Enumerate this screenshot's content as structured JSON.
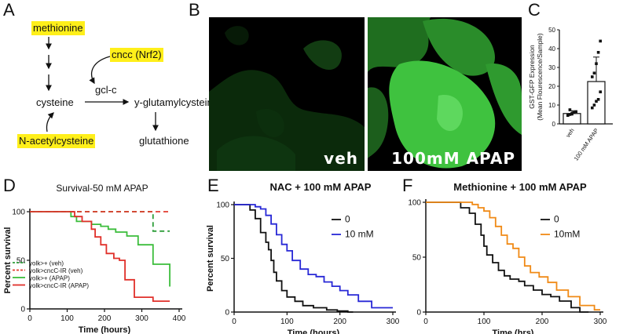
{
  "panels": {
    "A": {
      "label": "A",
      "nodes": {
        "methionine": "methionine",
        "cncc": "cncc (Nrf2)",
        "cysteine": "cysteine",
        "gclc": "gcl-c",
        "glutamylcysteine": "y-glutamylcysteine",
        "nac": "N-acetylcysteine",
        "glutathione": "glutathione"
      }
    },
    "B": {
      "label": "B",
      "left_caption": "veh",
      "right_caption": "100mM APAP"
    },
    "C": {
      "label": "C"
    },
    "D": {
      "label": "D"
    },
    "E": {
      "label": "E"
    },
    "F": {
      "label": "F"
    }
  },
  "chart_data": [
    {
      "id": "C",
      "type": "bar",
      "ylabel": "GST-GFP Expression\n(Mean Flourescence/Sample)",
      "ylim": [
        0,
        50
      ],
      "yticks": [
        0,
        10,
        20,
        30,
        40,
        50
      ],
      "categories": [
        "veh",
        "100 mM APAP"
      ],
      "values": [
        5.5,
        22.5
      ],
      "errors": [
        1.5,
        13
      ],
      "points": [
        [
          4.5,
          5.0,
          5.5,
          6.0,
          6.5,
          4.8,
          7.5,
          5.2
        ],
        [
          8.5,
          10,
          12,
          13,
          17,
          25,
          27,
          32,
          38,
          44
        ]
      ]
    },
    {
      "id": "D",
      "type": "line",
      "title": "Survival-50 mM APAP",
      "xlabel": "Time (hours)",
      "ylabel": "Percent survival",
      "xlim": [
        0,
        400
      ],
      "ylim": [
        0,
        100
      ],
      "xticks": [
        0,
        100,
        200,
        300,
        400
      ],
      "yticks": [
        0,
        50,
        100
      ],
      "legend_position": "bottom-left",
      "series": [
        {
          "name": "yolk>+ (veh)",
          "color": "#2e9e3a",
          "dash": "6,4",
          "x": [
            0,
            330,
            330,
            375
          ],
          "y": [
            100,
            100,
            80,
            80
          ]
        },
        {
          "name": "yolk>cncC-IR (veh)",
          "color": "#e23b2e",
          "dash": "6,4",
          "x": [
            0,
            375
          ],
          "y": [
            100,
            100
          ]
        },
        {
          "name": "yolk>+ (APAP)",
          "color": "#3bbd3b",
          "dash": "",
          "x": [
            0,
            110,
            110,
            125,
            125,
            165,
            165,
            190,
            190,
            210,
            210,
            230,
            230,
            260,
            260,
            290,
            290,
            330,
            330,
            375,
            375
          ],
          "y": [
            100,
            100,
            95,
            95,
            90,
            90,
            87,
            87,
            85,
            85,
            82,
            82,
            79,
            79,
            75,
            75,
            66,
            66,
            46,
            46,
            23
          ]
        },
        {
          "name": "yolk>cncC-IR (APAP)",
          "color": "#e0302a",
          "dash": "",
          "x": [
            0,
            120,
            120,
            140,
            140,
            165,
            165,
            175,
            175,
            190,
            190,
            205,
            205,
            225,
            225,
            240,
            240,
            255,
            255,
            280,
            280,
            330,
            330,
            375
          ],
          "y": [
            100,
            100,
            95,
            95,
            90,
            90,
            82,
            82,
            74,
            74,
            66,
            66,
            57,
            57,
            52,
            52,
            50,
            50,
            30,
            30,
            12,
            12,
            8,
            8
          ]
        }
      ]
    },
    {
      "id": "E",
      "type": "line",
      "title": "NAC + 100 mM APAP",
      "xlabel": "Time (hours)",
      "ylabel": "Percent survival",
      "xlim": [
        0,
        300
      ],
      "ylim": [
        0,
        100
      ],
      "xticks": [
        0,
        100,
        200,
        300
      ],
      "yticks": [
        0,
        50,
        100
      ],
      "legend_position": "top-right",
      "series": [
        {
          "name": "0",
          "color": "#111111",
          "dash": "",
          "x": [
            0,
            30,
            30,
            40,
            40,
            50,
            50,
            60,
            60,
            65,
            65,
            70,
            70,
            75,
            75,
            80,
            80,
            90,
            90,
            100,
            100,
            115,
            115,
            130,
            130,
            150,
            150,
            175,
            175,
            195,
            195,
            215,
            215,
            225
          ],
          "y": [
            100,
            100,
            95,
            95,
            87,
            87,
            74,
            74,
            65,
            65,
            58,
            58,
            48,
            48,
            37,
            37,
            29,
            29,
            20,
            20,
            14,
            14,
            10,
            10,
            6,
            6,
            4,
            4,
            2,
            2,
            1,
            1,
            0,
            0
          ]
        },
        {
          "name": "10 mM",
          "color": "#2828d6",
          "dash": "",
          "x": [
            0,
            40,
            40,
            50,
            50,
            60,
            60,
            70,
            70,
            80,
            80,
            90,
            90,
            100,
            100,
            110,
            110,
            125,
            125,
            140,
            140,
            155,
            155,
            170,
            170,
            185,
            185,
            200,
            200,
            215,
            215,
            235,
            235,
            260,
            260,
            300
          ],
          "y": [
            100,
            100,
            98,
            98,
            96,
            96,
            90,
            90,
            82,
            82,
            72,
            72,
            63,
            63,
            57,
            57,
            48,
            48,
            40,
            40,
            35,
            35,
            33,
            33,
            28,
            28,
            24,
            24,
            20,
            20,
            16,
            16,
            10,
            10,
            4,
            4
          ]
        }
      ]
    },
    {
      "id": "F",
      "type": "line",
      "title": "Methionine + 100 mM APAP",
      "xlabel": "Time (hrs)",
      "ylabel": "",
      "xlim": [
        0,
        300
      ],
      "ylim": [
        0,
        100
      ],
      "xticks": [
        0,
        100,
        200,
        300
      ],
      "yticks": [
        0,
        50,
        100
      ],
      "legend_position": "top-right",
      "series": [
        {
          "name": "0",
          "color": "#111111",
          "dash": "",
          "x": [
            0,
            60,
            60,
            75,
            75,
            85,
            85,
            95,
            95,
            100,
            100,
            105,
            105,
            115,
            115,
            125,
            125,
            135,
            135,
            145,
            145,
            160,
            160,
            170,
            170,
            185,
            185,
            200,
            200,
            215,
            215,
            230,
            230,
            250,
            250,
            265,
            265,
            280
          ],
          "y": [
            100,
            100,
            95,
            95,
            90,
            90,
            80,
            80,
            70,
            70,
            60,
            60,
            52,
            52,
            45,
            45,
            38,
            38,
            33,
            33,
            30,
            30,
            28,
            28,
            24,
            24,
            20,
            20,
            16,
            16,
            14,
            14,
            10,
            10,
            4,
            4,
            0,
            0
          ]
        },
        {
          "name": "10mM",
          "color": "#f08a16",
          "dash": "",
          "x": [
            0,
            80,
            80,
            90,
            90,
            100,
            100,
            110,
            110,
            120,
            120,
            130,
            130,
            140,
            140,
            150,
            150,
            160,
            160,
            170,
            170,
            180,
            180,
            195,
            195,
            210,
            210,
            225,
            225,
            245,
            245,
            265,
            265,
            290,
            290,
            300
          ],
          "y": [
            100,
            100,
            98,
            98,
            95,
            95,
            92,
            92,
            86,
            86,
            78,
            78,
            70,
            70,
            62,
            62,
            58,
            58,
            50,
            50,
            42,
            42,
            36,
            36,
            32,
            32,
            27,
            27,
            20,
            20,
            14,
            14,
            6,
            6,
            2,
            2
          ]
        }
      ]
    }
  ]
}
